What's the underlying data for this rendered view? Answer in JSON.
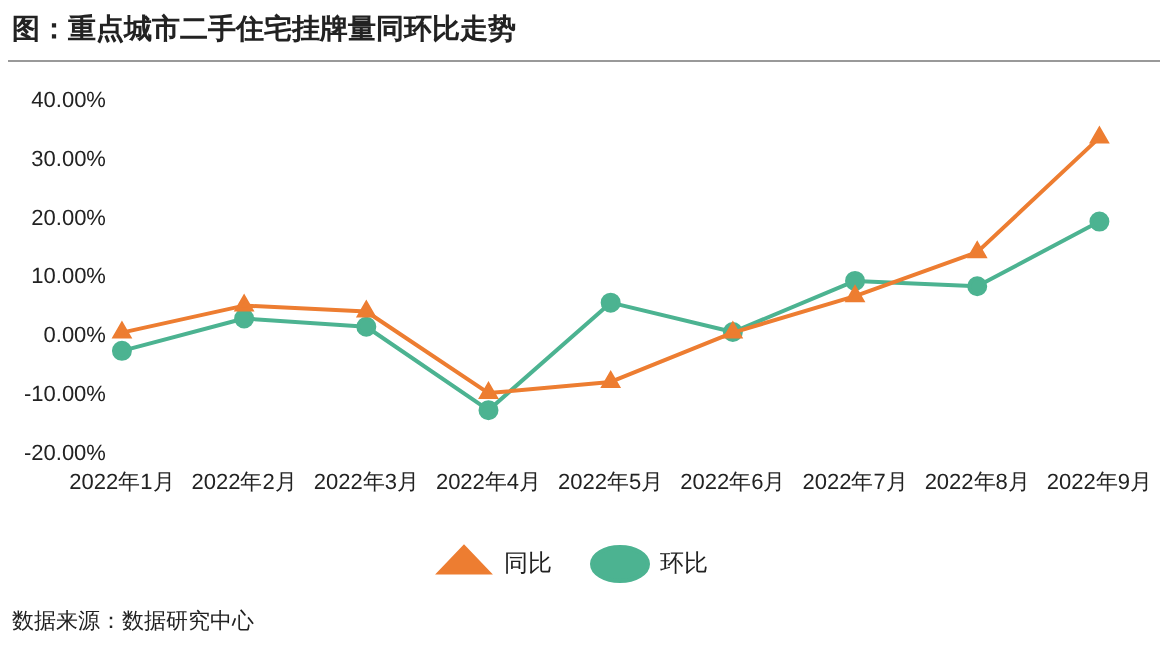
{
  "chart_data": {
    "type": "line",
    "title": "图：重点城市二手住宅挂牌量同环比走势",
    "categories": [
      "2022年1月",
      "2022年2月",
      "2022年3月",
      "2022年4月",
      "2022年5月",
      "2022年6月",
      "2022年7月",
      "2022年8月",
      "2022年9月"
    ],
    "series": [
      {
        "name": "环比",
        "color": "#4cb391",
        "marker": "circle",
        "values": [
          -2.5,
          3.0,
          1.6,
          -12.6,
          5.7,
          0.7,
          9.4,
          8.5,
          19.5
        ]
      },
      {
        "name": "同比",
        "color": "#ed7d31",
        "marker": "triangle",
        "values": [
          0.6,
          5.2,
          4.2,
          -9.7,
          -7.8,
          0.6,
          6.8,
          14.3,
          33.8
        ]
      }
    ],
    "ylim": [
      -20,
      40
    ],
    "yticks": [
      {
        "value": -20,
        "label": "-20.00%"
      },
      {
        "value": -10,
        "label": "-10.00%"
      },
      {
        "value": 0,
        "label": "0.00%"
      },
      {
        "value": 10,
        "label": "10.00%"
      },
      {
        "value": 20,
        "label": "20.00%"
      },
      {
        "value": 30,
        "label": "30.00%"
      },
      {
        "value": 40,
        "label": "40.00%"
      }
    ],
    "grid": false,
    "legend": "bottom",
    "line_style": "solid",
    "annotations": [
      "数据来源：数据研究中心"
    ]
  }
}
